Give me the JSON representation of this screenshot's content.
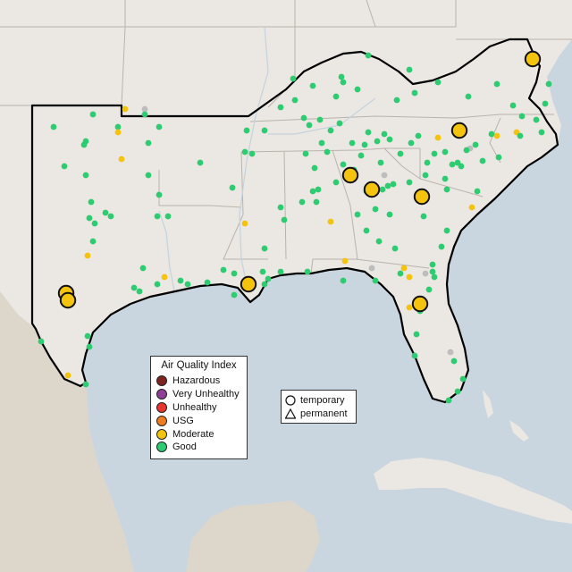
{
  "colors": {
    "water": "#cad6df",
    "land": "#ebe7e2",
    "land_shade": "#e2ddd5",
    "mexico_shade": "#ddd6cb",
    "border": "#000000",
    "state_line": "#b9b3ab"
  },
  "legend": {
    "title": "Air Quality Index",
    "categories": [
      {
        "label": "Hazardous",
        "color": "#7e2420"
      },
      {
        "label": "Very Unhealthy",
        "color": "#8f3f97"
      },
      {
        "label": "Unhealthy",
        "color": "#e5372d"
      },
      {
        "label": "USG",
        "color": "#ee7d22"
      },
      {
        "label": "Moderate",
        "color": "#f4c30d"
      },
      {
        "label": "Good",
        "color": "#2ecc71"
      }
    ]
  },
  "monitor_type_legend": {
    "items": [
      {
        "label": "temporary",
        "shape": "circle-icon"
      },
      {
        "label": "permanent",
        "shape": "triangle-icon"
      }
    ]
  }
}
